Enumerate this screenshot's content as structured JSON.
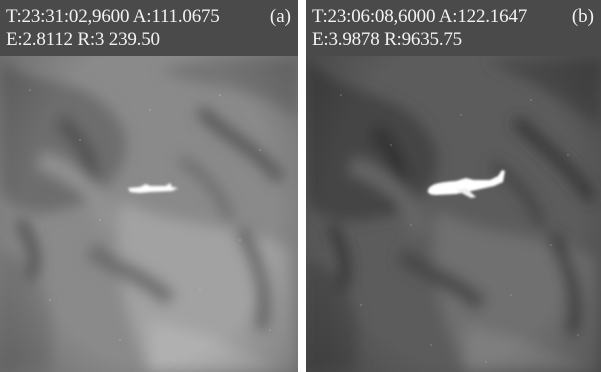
{
  "panels": [
    {
      "id": "a",
      "tag": "(a)",
      "line1": "T:23:31:02,9600 A:111.0675",
      "line2": "E:2.8112 R:3 239.50",
      "colors": {
        "base": "#8c8c8c",
        "dark": "#5a5a5a",
        "light": "#a8a8a8",
        "target": "#ffffff"
      }
    },
    {
      "id": "b",
      "tag": "(b)",
      "line1": "T:23:06:08,6000 A:122.1647",
      "line2": "E:3.9878 R:9635.75",
      "colors": {
        "base": "#5f5f5f",
        "dark": "#3a3a3a",
        "light": "#7e7e7e",
        "target": "#ffffff"
      }
    }
  ]
}
